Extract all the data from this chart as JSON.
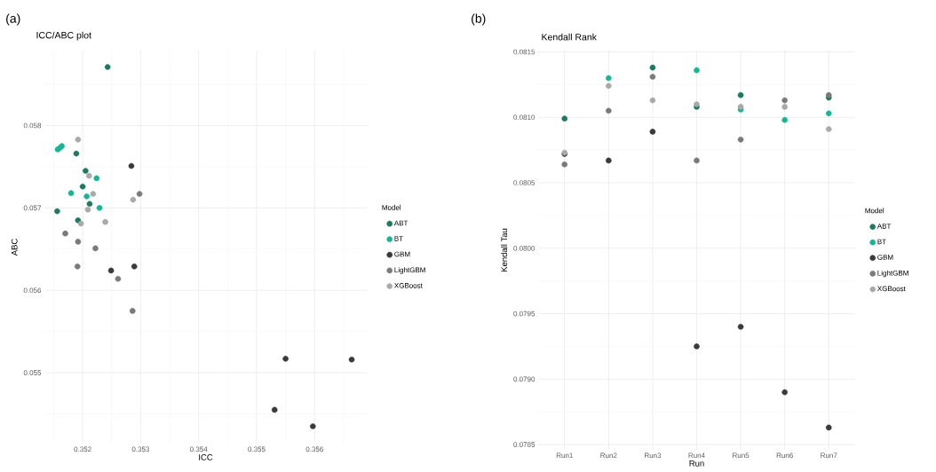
{
  "chart_data": [
    {
      "type": "scatter",
      "title": "ICC/ABC plot",
      "xlabel": "ICC",
      "ylabel": "ABC",
      "legend_title": "Model",
      "annotations": [
        "(a)"
      ],
      "marker": "circle",
      "grid": true,
      "legend": "right",
      "xlim": [
        0.35134,
        0.3569
      ],
      "ylim": [
        0.05414,
        0.05891
      ],
      "xticks": [
        0.352,
        0.353,
        0.354,
        0.355,
        0.356
      ],
      "yticks": [
        0.055,
        0.056,
        0.057,
        0.058
      ],
      "series": [
        {
          "name": "ABT",
          "color": "#1b7a60",
          "x": [
            0.35243,
            0.35189,
            0.35205,
            0.352,
            0.35212,
            0.35156,
            0.35192
          ],
          "values": [
            0.05871,
            0.05766,
            0.05745,
            0.05726,
            0.05705,
            0.05696,
            0.05685
          ]
        },
        {
          "name": "BT",
          "color": "#12b894",
          "x": [
            0.35157,
            0.35161,
            0.35164,
            0.35224,
            0.3518,
            0.35207,
            0.35229
          ],
          "values": [
            0.05771,
            0.05773,
            0.05775,
            0.05736,
            0.05718,
            0.05714,
            0.057
          ]
        },
        {
          "name": "GBM",
          "color": "#3a3a3a",
          "x": [
            0.35284,
            0.35249,
            0.35289,
            0.3555,
            0.35664,
            0.35531,
            0.35597
          ],
          "values": [
            0.05751,
            0.05624,
            0.05629,
            0.05517,
            0.05516,
            0.05455,
            0.05435
          ]
        },
        {
          "name": "LightGBM",
          "color": "#7a7a7a",
          "x": [
            0.3517,
            0.35192,
            0.35222,
            0.35191,
            0.35261,
            0.35286,
            0.35298
          ],
          "values": [
            0.05669,
            0.05659,
            0.05651,
            0.05629,
            0.05614,
            0.05575,
            0.05717
          ]
        },
        {
          "name": "XGBoost",
          "color": "#a9a9a9",
          "x": [
            0.35192,
            0.35211,
            0.35218,
            0.35209,
            0.35197,
            0.35239,
            0.35287
          ],
          "values": [
            0.05783,
            0.05739,
            0.05717,
            0.05698,
            0.05681,
            0.05683,
            0.0571
          ]
        }
      ]
    },
    {
      "type": "scatter",
      "title": "Kendall Rank",
      "xlabel": "Run",
      "ylabel": "Kendall Tau",
      "legend_title": "Model",
      "annotations": [
        "(b)"
      ],
      "marker": "circle",
      "grid": true,
      "legend": "right",
      "categories": [
        "Run1",
        "Run2",
        "Run3",
        "Run4",
        "Run5",
        "Run6",
        "Run7"
      ],
      "ylim": [
        0.07846,
        0.08151
      ],
      "yticks": [
        0.0785,
        {
          "value": 0.079,
          "label": "0.0790"
        },
        0.0795,
        {
          "value": 0.08,
          "label": "0.0800"
        },
        0.0805,
        {
          "value": 0.081,
          "label": "0.0810"
        },
        0.0815
      ],
      "series": [
        {
          "name": "ABT",
          "color": "#1b7a60",
          "values": [
            0.08099,
            null,
            0.08138,
            0.08108,
            0.08117,
            null,
            0.08115
          ]
        },
        {
          "name": "BT",
          "color": "#12b894",
          "values": [
            null,
            0.0813,
            null,
            0.08136,
            0.08106,
            0.08098,
            0.08103
          ]
        },
        {
          "name": "GBM",
          "color": "#3a3a3a",
          "values": [
            0.08072,
            0.08067,
            0.08089,
            0.07925,
            0.0794,
            0.0789,
            0.07863
          ]
        },
        {
          "name": "LightGBM",
          "color": "#7a7a7a",
          "values": [
            0.08064,
            0.08105,
            0.08131,
            0.08067,
            0.08083,
            0.08113,
            0.08117
          ]
        },
        {
          "name": "XGBoost",
          "color": "#a9a9a9",
          "values": [
            0.08073,
            0.08124,
            0.08113,
            0.0811,
            0.08108,
            0.08108,
            0.08091
          ]
        }
      ]
    }
  ]
}
